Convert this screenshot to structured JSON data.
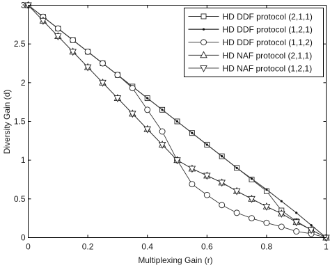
{
  "chart_data": {
    "type": "line",
    "xlabel": "Multiplexing Gain (r)",
    "ylabel": "Diversity Gain (d)",
    "xlim": [
      0,
      1
    ],
    "ylim": [
      0,
      3
    ],
    "xticks": [
      0,
      0.2,
      0.4,
      0.6,
      0.8,
      1
    ],
    "yticks": [
      0,
      0.5,
      1,
      1.5,
      2,
      2.5,
      3
    ],
    "xtick_labels": [
      "0",
      "0.2",
      "0.4",
      "0.6",
      "0.8",
      "1"
    ],
    "ytick_labels": [
      "0",
      "0.5",
      "1",
      "1.5",
      "2",
      "2.5",
      "3"
    ],
    "grid": false,
    "legend_position": "top-right",
    "series": [
      {
        "name": "HD DDF protocol (2,1,1)",
        "marker": "square",
        "x": [
          0,
          0.05,
          0.1,
          0.15,
          0.2,
          0.25,
          0.3,
          0.35,
          0.4,
          0.45,
          0.5,
          0.55,
          0.6,
          0.65,
          0.7,
          0.75,
          0.8,
          0.85,
          0.9,
          0.95,
          1
        ],
        "y": [
          3,
          2.85,
          2.7,
          2.55,
          2.4,
          2.25,
          2.1,
          1.95,
          1.8,
          1.65,
          1.5,
          1.35,
          1.2,
          1.05,
          0.9,
          0.75,
          0.6,
          0.35,
          0.21,
          0.1,
          0
        ]
      },
      {
        "name": "HD DDF protocol (1,2,1)",
        "marker": "dot",
        "x": [
          0,
          0.05,
          0.1,
          0.15,
          0.2,
          0.25,
          0.3,
          0.35,
          0.4,
          0.45,
          0.5,
          0.55,
          0.6,
          0.65,
          0.7,
          0.75,
          0.8,
          0.85,
          0.9,
          0.95,
          1
        ],
        "y": [
          3,
          2.85,
          2.7,
          2.55,
          2.4,
          2.25,
          2.1,
          1.95,
          1.8,
          1.65,
          1.5,
          1.35,
          1.2,
          1.05,
          0.9,
          0.76,
          0.62,
          0.47,
          0.32,
          0.16,
          0
        ]
      },
      {
        "name": "HD DDF protocol (1,1,2)",
        "marker": "circle",
        "x": [
          0,
          0.05,
          0.1,
          0.15,
          0.2,
          0.25,
          0.3,
          0.35,
          0.4,
          0.45,
          0.5,
          0.55,
          0.6,
          0.65,
          0.7,
          0.75,
          0.8,
          0.85,
          0.9,
          0.95,
          1
        ],
        "y": [
          3,
          2.85,
          2.7,
          2.55,
          2.4,
          2.25,
          2.1,
          1.93,
          1.65,
          1.37,
          1.0,
          0.69,
          0.55,
          0.42,
          0.32,
          0.25,
          0.19,
          0.14,
          0.08,
          0.05,
          0
        ]
      },
      {
        "name": "HD NAF protocol (2,1,1)",
        "marker": "triangle-up",
        "x": [
          0,
          0.05,
          0.1,
          0.15,
          0.2,
          0.25,
          0.3,
          0.35,
          0.4,
          0.45,
          0.5,
          0.55,
          0.6,
          0.65,
          0.7,
          0.75,
          0.8,
          0.85,
          0.9,
          0.95,
          1
        ],
        "y": [
          3,
          2.8,
          2.6,
          2.4,
          2.2,
          2.0,
          1.8,
          1.6,
          1.4,
          1.2,
          1.0,
          0.89,
          0.8,
          0.71,
          0.6,
          0.5,
          0.4,
          0.31,
          0.2,
          0.1,
          0
        ]
      },
      {
        "name": "HD NAF protocol (1,2,1)",
        "marker": "triangle-down",
        "x": [
          0,
          0.05,
          0.1,
          0.15,
          0.2,
          0.25,
          0.3,
          0.35,
          0.4,
          0.45,
          0.5,
          0.55,
          0.6,
          0.65,
          0.7,
          0.75,
          0.8,
          0.85,
          0.9,
          0.95,
          1
        ],
        "y": [
          3,
          2.8,
          2.6,
          2.4,
          2.2,
          2.0,
          1.8,
          1.6,
          1.4,
          1.2,
          1.0,
          0.89,
          0.8,
          0.71,
          0.6,
          0.5,
          0.4,
          0.31,
          0.2,
          0.1,
          0
        ]
      }
    ]
  }
}
